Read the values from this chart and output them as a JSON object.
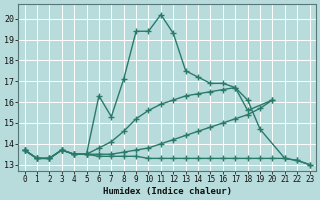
{
  "xlabel": "Humidex (Indice chaleur)",
  "xlim": [
    -0.5,
    23.5
  ],
  "ylim": [
    12.7,
    20.7
  ],
  "xticks": [
    0,
    1,
    2,
    3,
    4,
    5,
    6,
    7,
    8,
    9,
    10,
    11,
    12,
    13,
    14,
    15,
    16,
    17,
    18,
    19,
    20,
    21,
    22,
    23
  ],
  "yticks": [
    13,
    14,
    15,
    16,
    17,
    18,
    19,
    20
  ],
  "bg_color": "#b8dcdc",
  "grid_color": "#d8f0f0",
  "line_color": "#2a7a6a",
  "curves": [
    {
      "x": [
        0,
        1,
        2,
        3,
        4,
        5,
        6,
        7,
        8,
        9,
        10,
        11,
        12,
        13,
        14,
        15,
        16,
        17,
        18,
        19,
        21,
        22,
        23
      ],
      "y": [
        13.7,
        13.3,
        13.3,
        13.7,
        13.5,
        13.5,
        16.3,
        15.3,
        17.1,
        19.4,
        19.4,
        20.2,
        19.3,
        17.5,
        17.2,
        16.9,
        16.9,
        16.7,
        16.1,
        14.7,
        13.3,
        13.2,
        13.0
      ]
    },
    {
      "x": [
        0,
        1,
        2,
        3,
        4,
        5,
        6,
        7,
        8,
        9,
        10,
        11,
        12,
        13,
        14,
        15,
        16,
        17,
        18,
        20
      ],
      "y": [
        13.7,
        13.3,
        13.3,
        13.7,
        13.5,
        13.5,
        13.8,
        14.1,
        14.6,
        15.2,
        15.6,
        15.9,
        16.1,
        16.3,
        16.4,
        16.5,
        16.6,
        16.7,
        15.6,
        16.1
      ]
    },
    {
      "x": [
        0,
        1,
        2,
        3,
        4,
        5,
        6,
        7,
        8,
        9,
        10,
        11,
        12,
        13,
        14,
        15,
        16,
        17,
        18,
        19,
        20
      ],
      "y": [
        13.7,
        13.3,
        13.3,
        13.7,
        13.5,
        13.5,
        13.5,
        13.5,
        13.6,
        13.7,
        13.8,
        14.0,
        14.2,
        14.4,
        14.6,
        14.8,
        15.0,
        15.2,
        15.4,
        15.7,
        16.1
      ]
    },
    {
      "x": [
        0,
        1,
        2,
        3,
        4,
        5,
        6,
        7,
        8,
        9,
        10,
        11,
        12,
        13,
        14,
        15,
        16,
        17,
        18,
        19,
        20,
        21,
        22,
        23
      ],
      "y": [
        13.7,
        13.3,
        13.3,
        13.7,
        13.5,
        13.5,
        13.4,
        13.4,
        13.4,
        13.4,
        13.3,
        13.3,
        13.3,
        13.3,
        13.3,
        13.3,
        13.3,
        13.3,
        13.3,
        13.3,
        13.3,
        13.3,
        13.2,
        13.0
      ]
    }
  ]
}
